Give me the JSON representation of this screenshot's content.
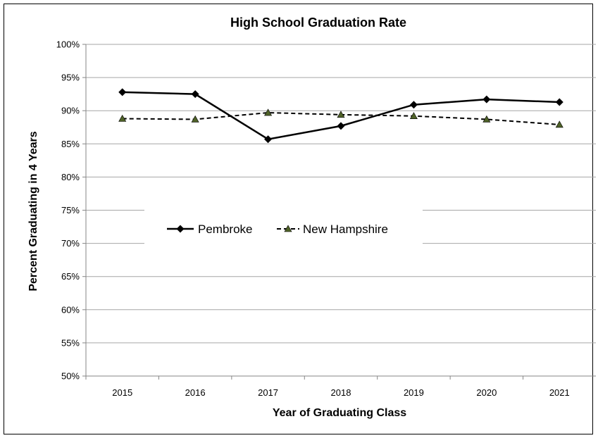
{
  "chart_data": {
    "type": "line",
    "title": "High School Graduation Rate",
    "xlabel": "Year of Graduating Class",
    "ylabel": "Percent Graduating in 4 Years",
    "categories": [
      "2015",
      "2016",
      "2017",
      "2018",
      "2019",
      "2020",
      "2021"
    ],
    "ylim": [
      50,
      100
    ],
    "y_ticks": [
      50,
      55,
      60,
      65,
      70,
      75,
      80,
      85,
      90,
      95,
      100
    ],
    "y_tick_format": "%",
    "grid": true,
    "legend_placement": "center",
    "series": [
      {
        "name": "Pembroke",
        "values": [
          92.8,
          92.5,
          85.7,
          87.7,
          90.9,
          91.7,
          91.3
        ],
        "color": "#000000",
        "style": "solid",
        "marker": "diamond"
      },
      {
        "name": "New Hampshire",
        "values": [
          88.8,
          88.7,
          89.7,
          89.4,
          89.2,
          88.7,
          87.9
        ],
        "color": "#000000",
        "marker_fill": "#4f6228",
        "style": "dashed",
        "marker": "triangle"
      }
    ]
  }
}
